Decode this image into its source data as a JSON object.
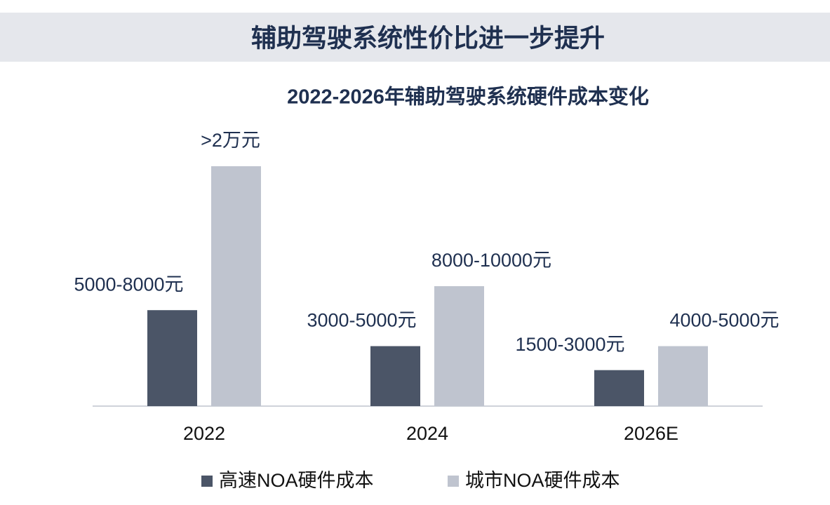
{
  "header": {
    "title": "辅助驾驶系统性价比进一步提升"
  },
  "chart_data": {
    "type": "bar",
    "title": "2022-2026年辅助驾驶系统硬件成本变化",
    "categories": [
      "2022",
      "2024",
      "2026E"
    ],
    "series": [
      {
        "name": "高速NOA硬件成本",
        "color": "#4b5567",
        "values": [
          8000,
          5000,
          3000
        ],
        "value_labels": [
          "5000-8000元",
          "3000-5000元",
          "1500-3000元"
        ]
      },
      {
        "name": "城市NOA硬件成本",
        "color": "#bfc4cf",
        "values": [
          20000,
          10000,
          5000
        ],
        "value_labels": [
          ">2万元",
          "8000-10000元",
          "4000-5000元"
        ]
      }
    ]
  }
}
